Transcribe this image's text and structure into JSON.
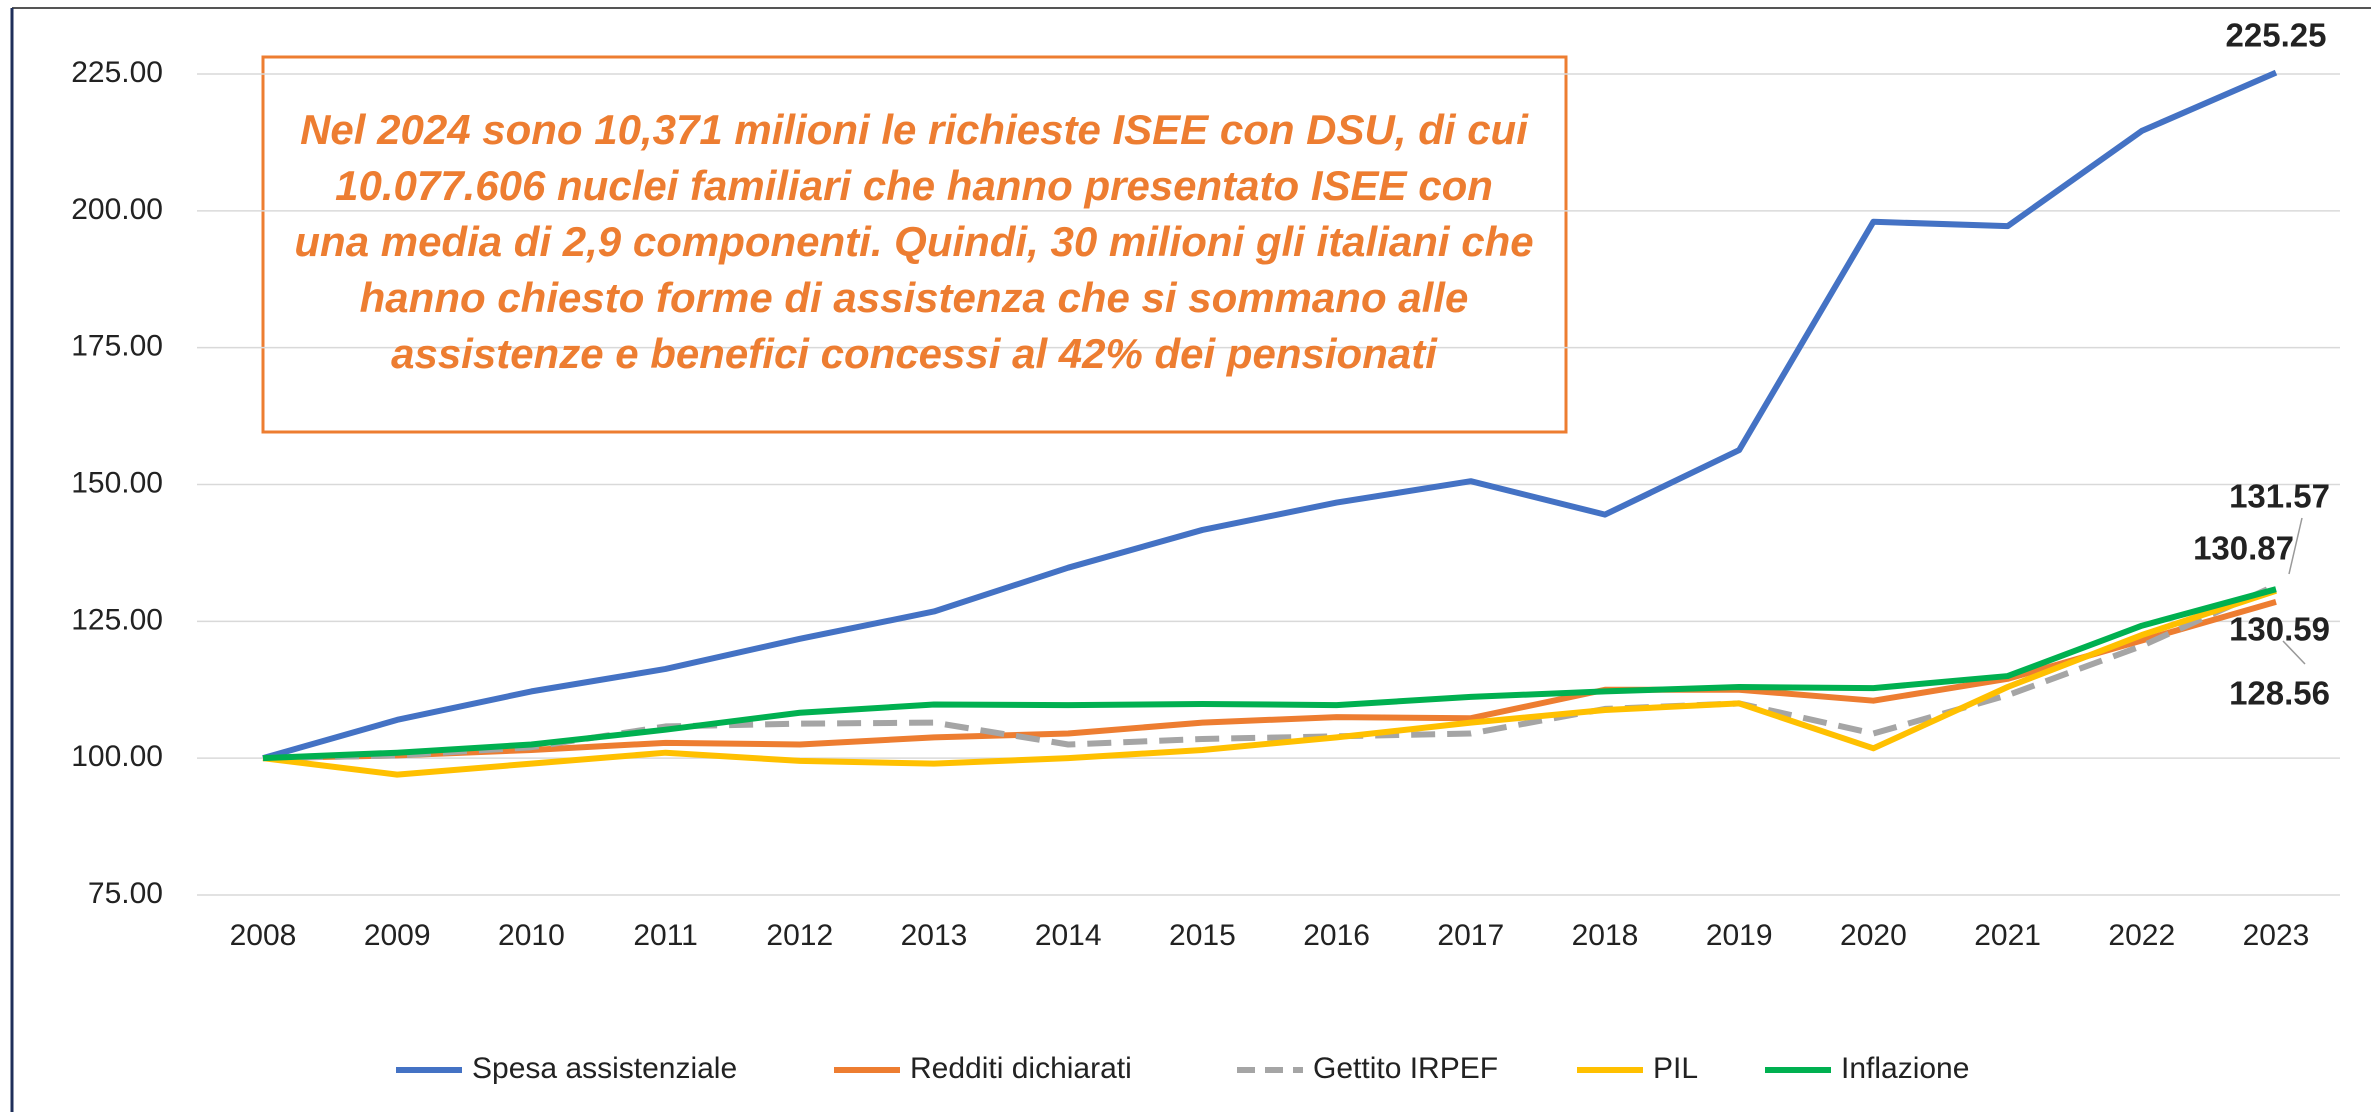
{
  "chart_data": {
    "type": "line",
    "annotation": [
      "Nel 2024 sono 10,371 milioni le richieste ISEE con DSU, di cui",
      "10.077.606 nuclei familiari che hanno presentato ISEE con",
      "una media di 2,9 componenti. Quindi, 30 milioni gli italiani che",
      "hanno chiesto forme di assistenza che si sommano alle",
      "assistenze e benefici concessi al 42% dei pensionati"
    ],
    "categories": [
      "2008",
      "2009",
      "2010",
      "2011",
      "2012",
      "2013",
      "2014",
      "2015",
      "2016",
      "2017",
      "2018",
      "2019",
      "2020",
      "2021",
      "2022",
      "2023"
    ],
    "series": [
      {
        "name": "Spesa assistenziale",
        "color": "#4472C4",
        "values": [
          100,
          107,
          112.2,
          116.3,
          121.8,
          126.8,
          134.8,
          141.7,
          146.7,
          150.6,
          144.5,
          156.3,
          198,
          197.2,
          214.6,
          225.25
        ]
      },
      {
        "name": "Redditi dichiarati",
        "color": "#ED7D31",
        "values": [
          100,
          100.5,
          101.5,
          102.8,
          102.5,
          103.8,
          104.5,
          106.5,
          107.5,
          107.3,
          112.5,
          112.5,
          110.5,
          114.5,
          121.5,
          128.56
        ]
      },
      {
        "name": "Gettito IRPEF",
        "color": "#A5A5A5",
        "dashed": true,
        "values": [
          100,
          100.5,
          102,
          105.8,
          106.3,
          106.5,
          102.5,
          103.5,
          104,
          104.5,
          109,
          110,
          104.5,
          111.5,
          120.5,
          131.57
        ]
      },
      {
        "name": "PIL",
        "color": "#FFC000",
        "values": [
          100,
          97,
          99,
          101,
          99.5,
          99,
          100,
          101.5,
          103.8,
          106.5,
          108.8,
          110,
          101.8,
          113,
          122.5,
          130.59
        ]
      },
      {
        "name": "Inflazione",
        "color": "#00B050",
        "values": [
          100,
          101,
          102.5,
          105.2,
          108.3,
          109.8,
          109.7,
          109.9,
          109.7,
          111.2,
          112.2,
          113,
          112.8,
          115,
          124.2,
          130.87
        ]
      }
    ],
    "ylim": [
      75,
      225
    ],
    "yticks": [
      {
        "value": 75,
        "label": "75.00"
      },
      {
        "value": 100,
        "label": "100.00"
      },
      {
        "value": 125,
        "label": "125.00"
      },
      {
        "value": 150,
        "label": "150.00"
      },
      {
        "value": 175,
        "label": "175.00"
      },
      {
        "value": 200,
        "label": "200.00"
      },
      {
        "value": 225,
        "label": "225.00"
      }
    ],
    "grid": true,
    "legend": "bottom"
  }
}
